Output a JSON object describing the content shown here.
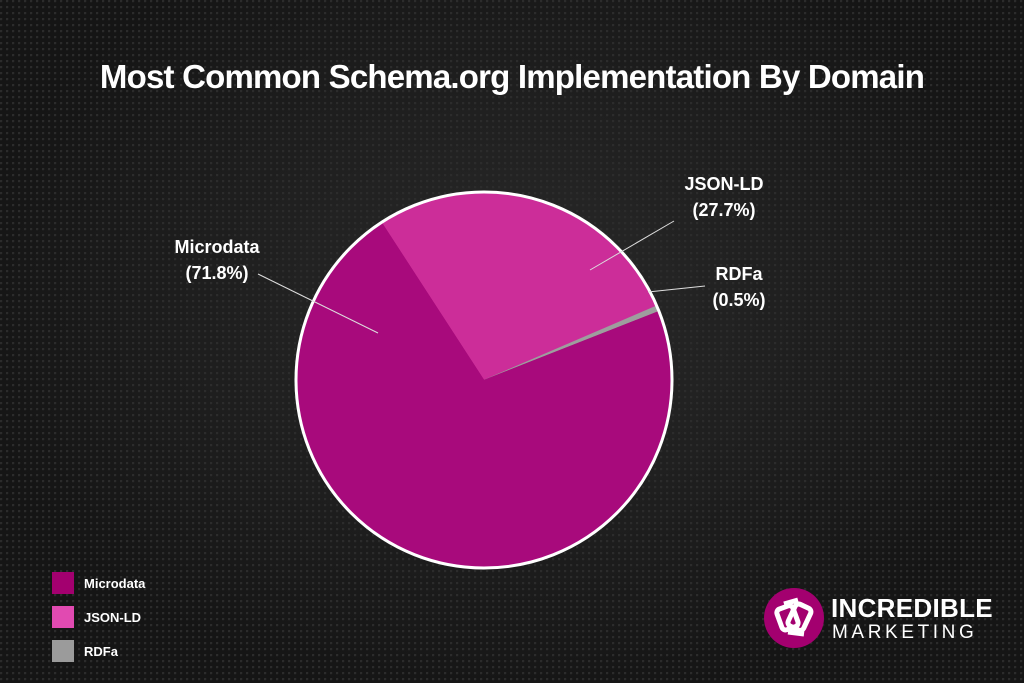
{
  "chart_data": {
    "type": "pie",
    "title": "Most Common Schema.org Implementation By Domain",
    "slices": [
      {
        "name": "Microdata",
        "value": 71.8,
        "label": "Microdata",
        "pct_label": "(71.8%)",
        "color": "#a80a7c"
      },
      {
        "name": "JSON-LD",
        "value": 27.7,
        "label": "JSON-LD",
        "pct_label": "(27.7%)",
        "color": "#cc2d99"
      },
      {
        "name": "RDFa",
        "value": 0.5,
        "label": "RDFa",
        "pct_label": "(0.5%)",
        "color": "#9e9e9e"
      }
    ],
    "legend": {
      "position": "bottom-left",
      "items": [
        {
          "label": "Microdata",
          "color": "#a3006f"
        },
        {
          "label": "JSON-LD",
          "color": "#e14ab1"
        },
        {
          "label": "RDFa",
          "color": "#9b9b9b"
        }
      ]
    }
  },
  "logo": {
    "line1": "INCREDIBLE",
    "line2": "MARKETING",
    "color": "#a3006f"
  },
  "colors": {
    "background": "#1b1b1b",
    "pie_border": "#ffffff",
    "leader_line": "#dddddd"
  }
}
